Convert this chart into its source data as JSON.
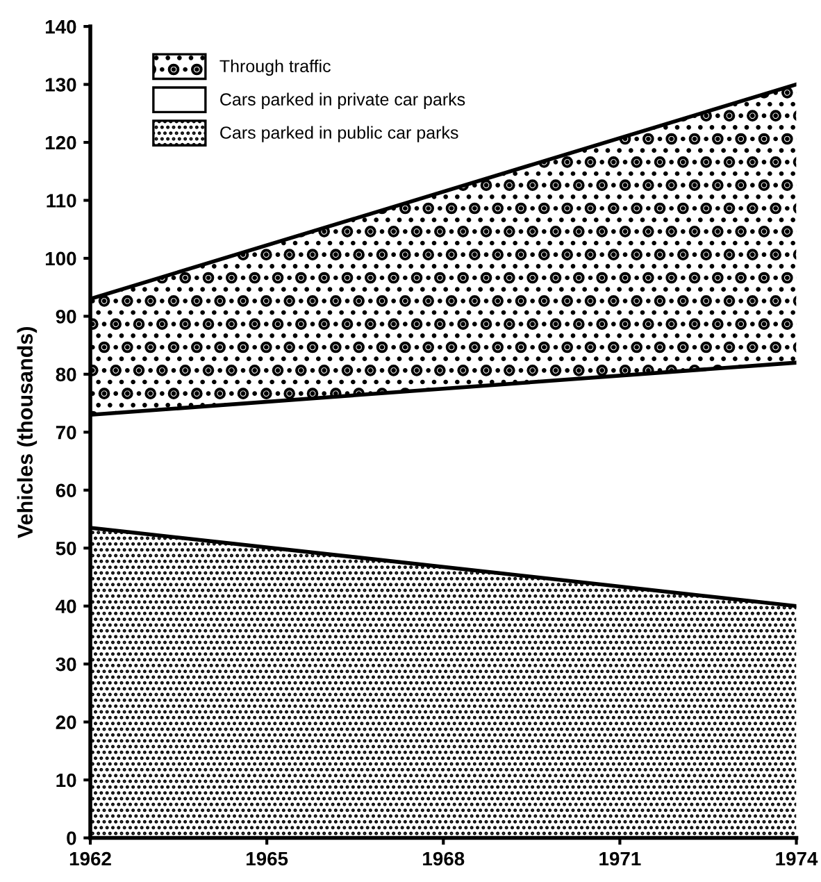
{
  "chart_data": {
    "type": "area",
    "stacked": true,
    "ylabel": "Vehicles (thousands)",
    "x": [
      1962,
      1974
    ],
    "series": [
      {
        "name": "Cars parked in public car parks",
        "color": "#000000",
        "values": [
          53.5,
          40
        ]
      },
      {
        "name": "Cars parked in private car parks",
        "color": "#000000",
        "values": [
          19.5,
          42
        ]
      },
      {
        "name": "Through traffic",
        "color": "#000000",
        "values": [
          20,
          48
        ]
      }
    ],
    "xlim": [
      1962,
      1974
    ],
    "xticks": [
      1962,
      1965,
      1968,
      1971,
      1974
    ],
    "ylim": [
      0,
      140
    ],
    "yticks": [
      0,
      10,
      20,
      30,
      40,
      50,
      60,
      70,
      80,
      90,
      100,
      110,
      120,
      130,
      140
    ],
    "grid": false,
    "legend": "top left"
  }
}
